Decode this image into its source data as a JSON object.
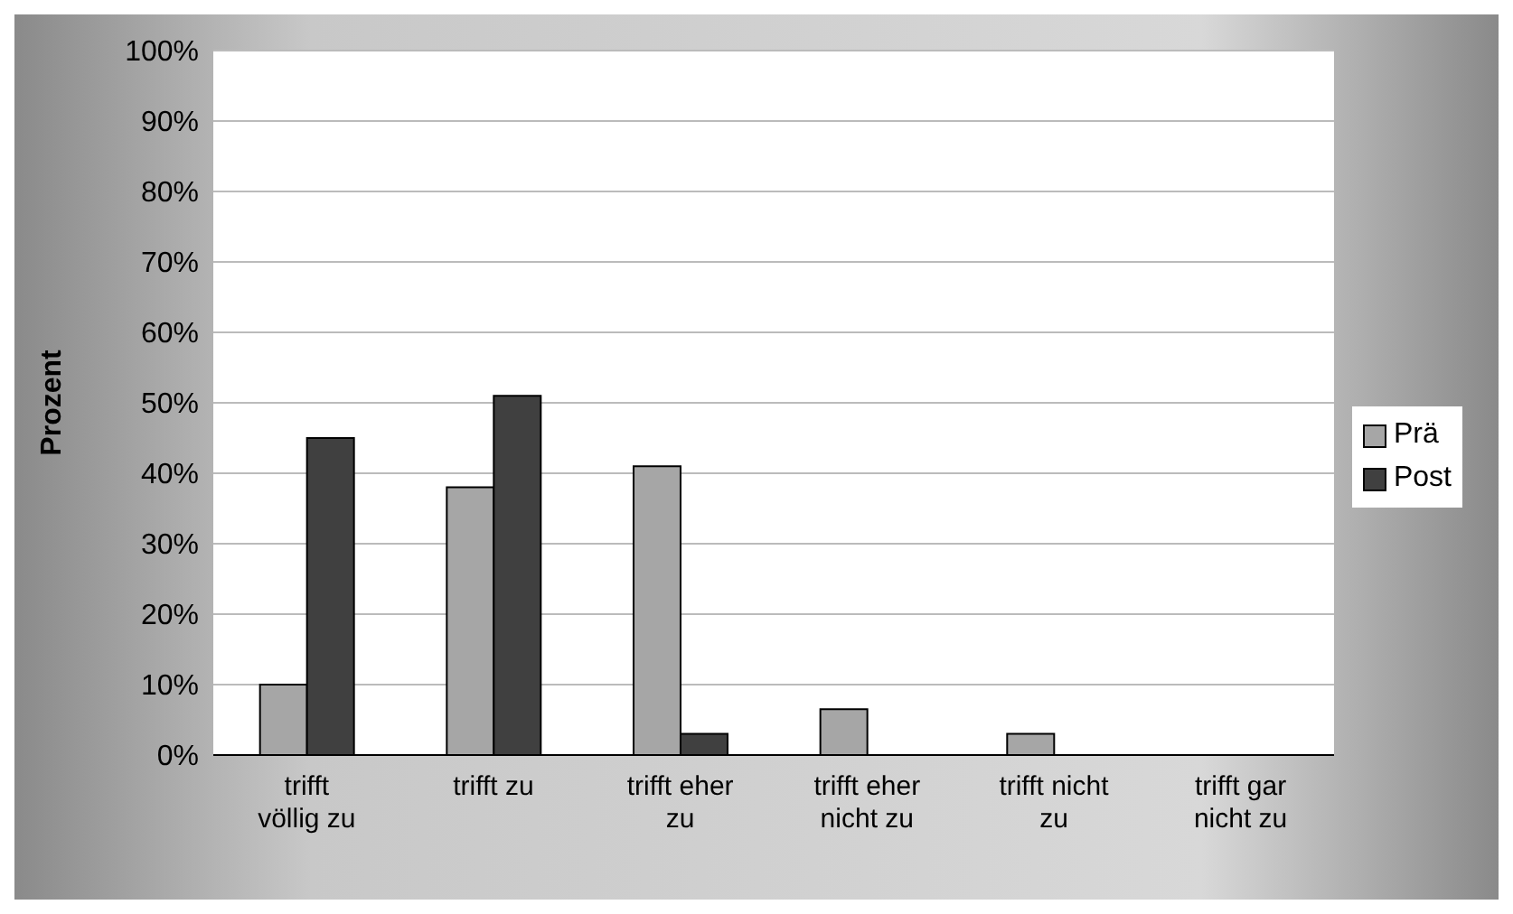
{
  "chart_data": {
    "type": "bar",
    "ylabel": "Prozent",
    "categories": [
      "trifft völlig zu",
      "trifft zu",
      "trifft eher zu",
      "trifft eher nicht zu",
      "trifft nicht zu",
      "trifft gar nicht zu"
    ],
    "series": [
      {
        "name": "Prä",
        "color": "#a6a6a6",
        "values": [
          10,
          38,
          41,
          6.5,
          3,
          0
        ]
      },
      {
        "name": "Post",
        "color": "#404040",
        "values": [
          45,
          51,
          3,
          0,
          0,
          0
        ]
      }
    ],
    "ylim": [
      0,
      100
    ],
    "yticks": [
      {
        "value": 0,
        "label": "0%"
      },
      {
        "value": 10,
        "label": "10%"
      },
      {
        "value": 20,
        "label": "20%"
      },
      {
        "value": 30,
        "label": "30%"
      },
      {
        "value": 40,
        "label": "40%"
      },
      {
        "value": 50,
        "label": "50%"
      },
      {
        "value": 60,
        "label": "60%"
      },
      {
        "value": 70,
        "label": "70%"
      },
      {
        "value": 80,
        "label": "80%"
      },
      {
        "value": 90,
        "label": "90%"
      },
      {
        "value": 100,
        "label": "100%"
      }
    ],
    "grid": "y",
    "legend": "right"
  }
}
